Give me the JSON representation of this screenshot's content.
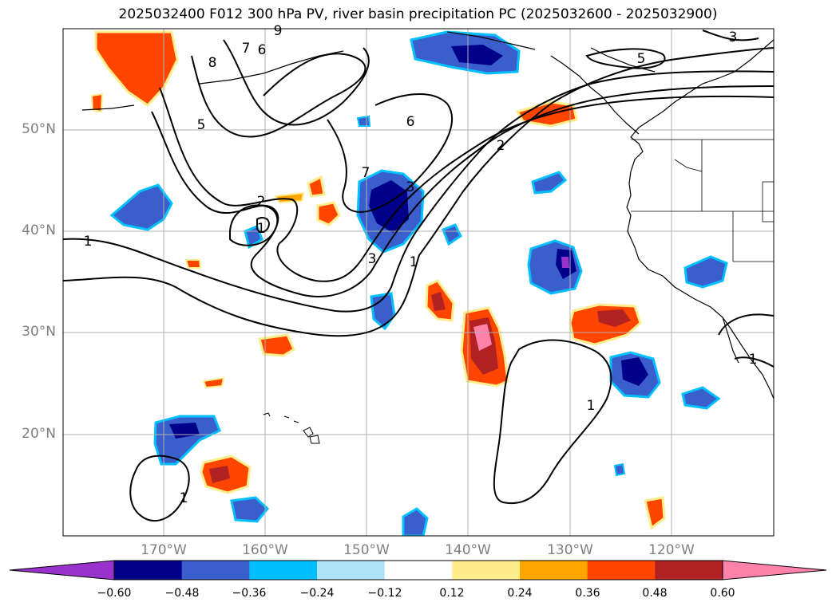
{
  "title": "2025032400 F012 300 hPa PV, river basin precipitation PC (2025032600 - 2025032900)",
  "latitude_labels": [
    "50°N",
    "40°N",
    "30°N",
    "20°N"
  ],
  "longitude_labels": [
    "170°W",
    "160°W",
    "150°W",
    "140°W",
    "130°W",
    "120°W"
  ],
  "colorbar": {
    "colors": [
      "#9932CC",
      "#00008B",
      "#3A5FCD",
      "#00BFFF",
      "#ADE2F8",
      "#FFFFFF",
      "#FFEC8B",
      "#FFA500",
      "#FF4500",
      "#B22222",
      "#FF82AB"
    ],
    "tick_labels": [
      "−0.60",
      "−0.48",
      "−0.36",
      "−0.24",
      "−0.12",
      "0.12",
      "0.24",
      "0.36",
      "0.48",
      "0.60"
    ]
  },
  "contour_labels": [
    "1",
    "2",
    "3",
    "5",
    "6",
    "7",
    "8",
    "9",
    "1",
    "2",
    "5",
    "3",
    "1",
    "1",
    "1",
    "3",
    "1",
    "7",
    "6"
  ]
}
